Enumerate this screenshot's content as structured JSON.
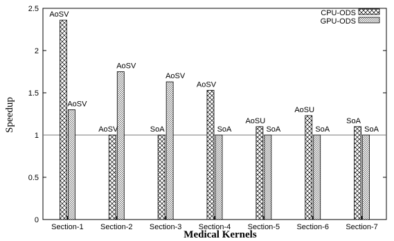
{
  "chart_data": {
    "type": "bar",
    "title": "",
    "xlabel": "Medical Kernels",
    "ylabel": "Speedup",
    "ylim": [
      0,
      2.5
    ],
    "yticks": [
      "0",
      "0.5",
      "1",
      "1.5",
      "2",
      "2.5"
    ],
    "reference_line": 1,
    "grid": false,
    "legend_position": "top-right",
    "categories": [
      "Section-1",
      "Section-2",
      "Section-3",
      "Section-4",
      "Section-5",
      "Section-6",
      "Section-7"
    ],
    "series": [
      {
        "name": "CPU-ODS",
        "pattern": "crosshatch",
        "values": [
          2.36,
          1.0,
          1.0,
          1.53,
          1.1,
          1.23,
          1.1
        ],
        "labels": [
          "AoSV",
          "AoSV",
          "SoA",
          "AoSV",
          "AoSU",
          "AoSU",
          "SoA"
        ]
      },
      {
        "name": "GPU-ODS",
        "pattern": "dots",
        "values": [
          1.3,
          1.75,
          1.63,
          1.0,
          1.0,
          1.0,
          1.0
        ],
        "labels": [
          "AoSV",
          "AoSV",
          "AoSV",
          "SoA",
          "SoA",
          "SoA",
          "SoA"
        ]
      }
    ]
  }
}
